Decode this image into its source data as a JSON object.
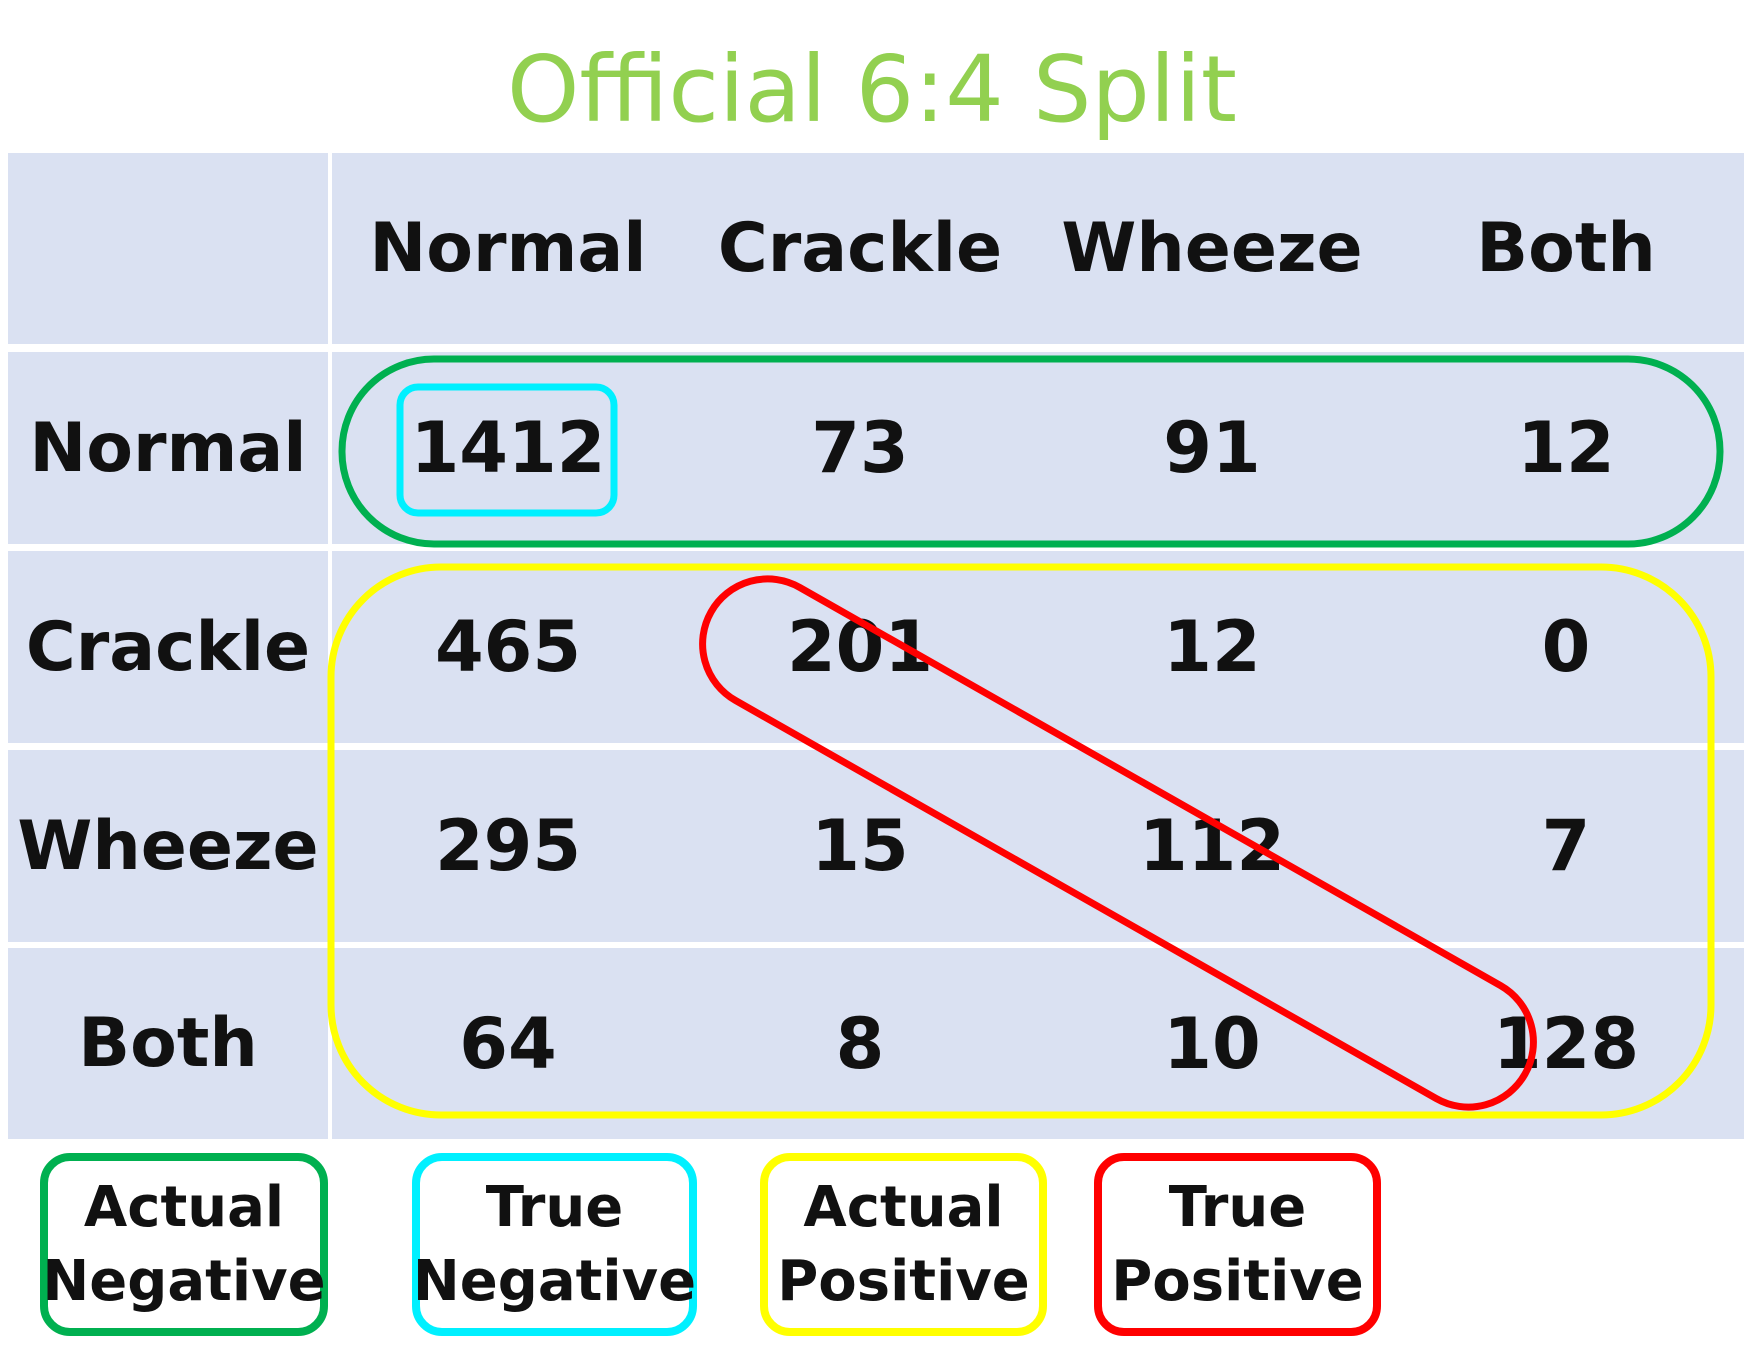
{
  "title": "Official 6:4 Split",
  "chart_data": {
    "type": "table",
    "title": "Official 6:4 Split",
    "columns": [
      "Normal",
      "Crackle",
      "Wheeze",
      "Both"
    ],
    "rows": [
      {
        "label": "Normal",
        "values": [
          "1412",
          "73",
          "91",
          "12"
        ]
      },
      {
        "label": "Crackle",
        "values": [
          "465",
          "201",
          "12",
          "0"
        ]
      },
      {
        "label": "Wheeze",
        "values": [
          "295",
          "15",
          "112",
          "7"
        ]
      },
      {
        "label": "Both",
        "values": [
          "64",
          "8",
          "10",
          "128"
        ]
      }
    ]
  },
  "legend": [
    {
      "line1": "Actual",
      "line2": "Negative",
      "color": "#00b050"
    },
    {
      "line1": "True",
      "line2": "Negative",
      "color": "#00f0ff"
    },
    {
      "line1": "Actual",
      "line2": "Positive",
      "color": "#ffff00"
    },
    {
      "line1": "True",
      "line2": "Positive",
      "color": "#ff0000"
    }
  ],
  "highlights": {
    "actual_negative_color": "#00b050",
    "true_negative_color": "#00f0ff",
    "actual_positive_color": "#ffff00",
    "true_positive_color": "#ff0000"
  }
}
